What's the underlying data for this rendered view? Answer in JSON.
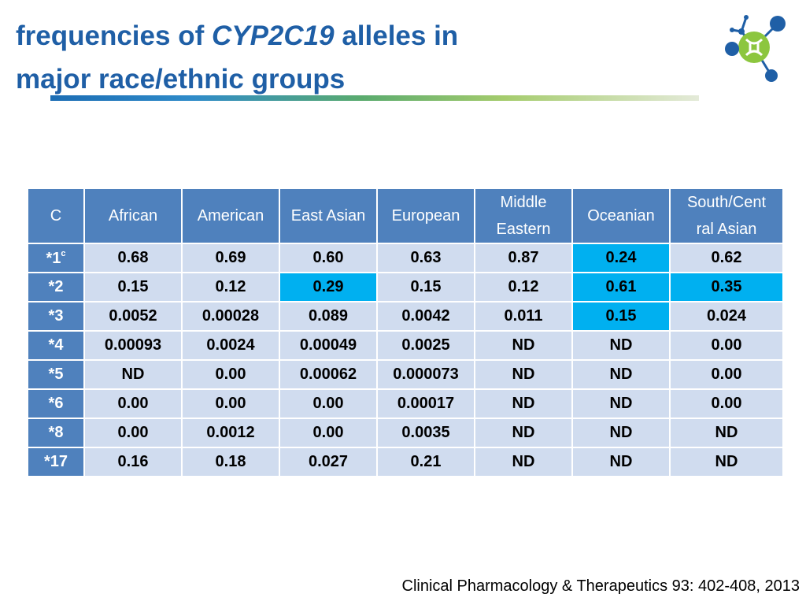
{
  "title": {
    "line1_prefix": "frequencies of ",
    "line1_gene": "CYP2C19",
    "line1_suffix": " alleles in",
    "line2": "major race/ethnic groups"
  },
  "table": {
    "corner": "C",
    "columns": [
      {
        "line1": "African",
        "line2": ""
      },
      {
        "line1": "American",
        "line2": ""
      },
      {
        "line1": "East Asian",
        "line2": ""
      },
      {
        "line1": "European",
        "line2": ""
      },
      {
        "line1": "Middle",
        "line2": "Eastern"
      },
      {
        "line1": "Oceanian",
        "line2": ""
      },
      {
        "line1": "South/Cent",
        "line2": "ral Asian"
      }
    ],
    "rows": [
      {
        "allele": "*1",
        "sup": "c",
        "values": [
          "0.68",
          "0.69",
          "0.60",
          "0.63",
          "0.87",
          "0.24",
          "0.62"
        ],
        "highlight": [
          false,
          false,
          false,
          false,
          false,
          true,
          false
        ]
      },
      {
        "allele": "*2",
        "sup": "",
        "values": [
          "0.15",
          "0.12",
          "0.29",
          "0.15",
          "0.12",
          "0.61",
          "0.35"
        ],
        "highlight": [
          false,
          false,
          true,
          false,
          false,
          true,
          true
        ]
      },
      {
        "allele": "*3",
        "sup": "",
        "values": [
          "0.0052",
          "0.00028",
          "0.089",
          "0.0042",
          "0.011",
          "0.15",
          "0.024"
        ],
        "highlight": [
          false,
          false,
          false,
          false,
          false,
          true,
          false
        ]
      },
      {
        "allele": "*4",
        "sup": "",
        "values": [
          "0.00093",
          "0.0024",
          "0.00049",
          "0.0025",
          "ND",
          "ND",
          "0.00"
        ],
        "highlight": [
          false,
          false,
          false,
          false,
          false,
          false,
          false
        ]
      },
      {
        "allele": "*5",
        "sup": "",
        "values": [
          "ND",
          "0.00",
          "0.00062",
          "0.000073",
          "ND",
          "ND",
          "0.00"
        ],
        "highlight": [
          false,
          false,
          false,
          false,
          false,
          false,
          false
        ]
      },
      {
        "allele": "*6",
        "sup": "",
        "values": [
          "0.00",
          "0.00",
          "0.00",
          "0.00017",
          "ND",
          "ND",
          "0.00"
        ],
        "highlight": [
          false,
          false,
          false,
          false,
          false,
          false,
          false
        ]
      },
      {
        "allele": "*8",
        "sup": "",
        "values": [
          "0.00",
          "0.0012",
          "0.00",
          "0.0035",
          "ND",
          "ND",
          "ND"
        ],
        "highlight": [
          false,
          false,
          false,
          false,
          false,
          false,
          false
        ]
      },
      {
        "allele": "*17",
        "sup": "",
        "values": [
          "0.16",
          "0.18",
          "0.027",
          "0.21",
          "ND",
          "ND",
          "ND"
        ],
        "highlight": [
          false,
          false,
          false,
          false,
          false,
          false,
          false
        ]
      }
    ]
  },
  "citation": "Clinical Pharmacology & Therapeutics 93: 402-408, 2013",
  "logo_icon": "molecule-network-icon",
  "colors": {
    "title": "#1f5fa6",
    "header": "#4f81bd",
    "cell": "#d0dcef",
    "highlight": "#00b0f0"
  }
}
